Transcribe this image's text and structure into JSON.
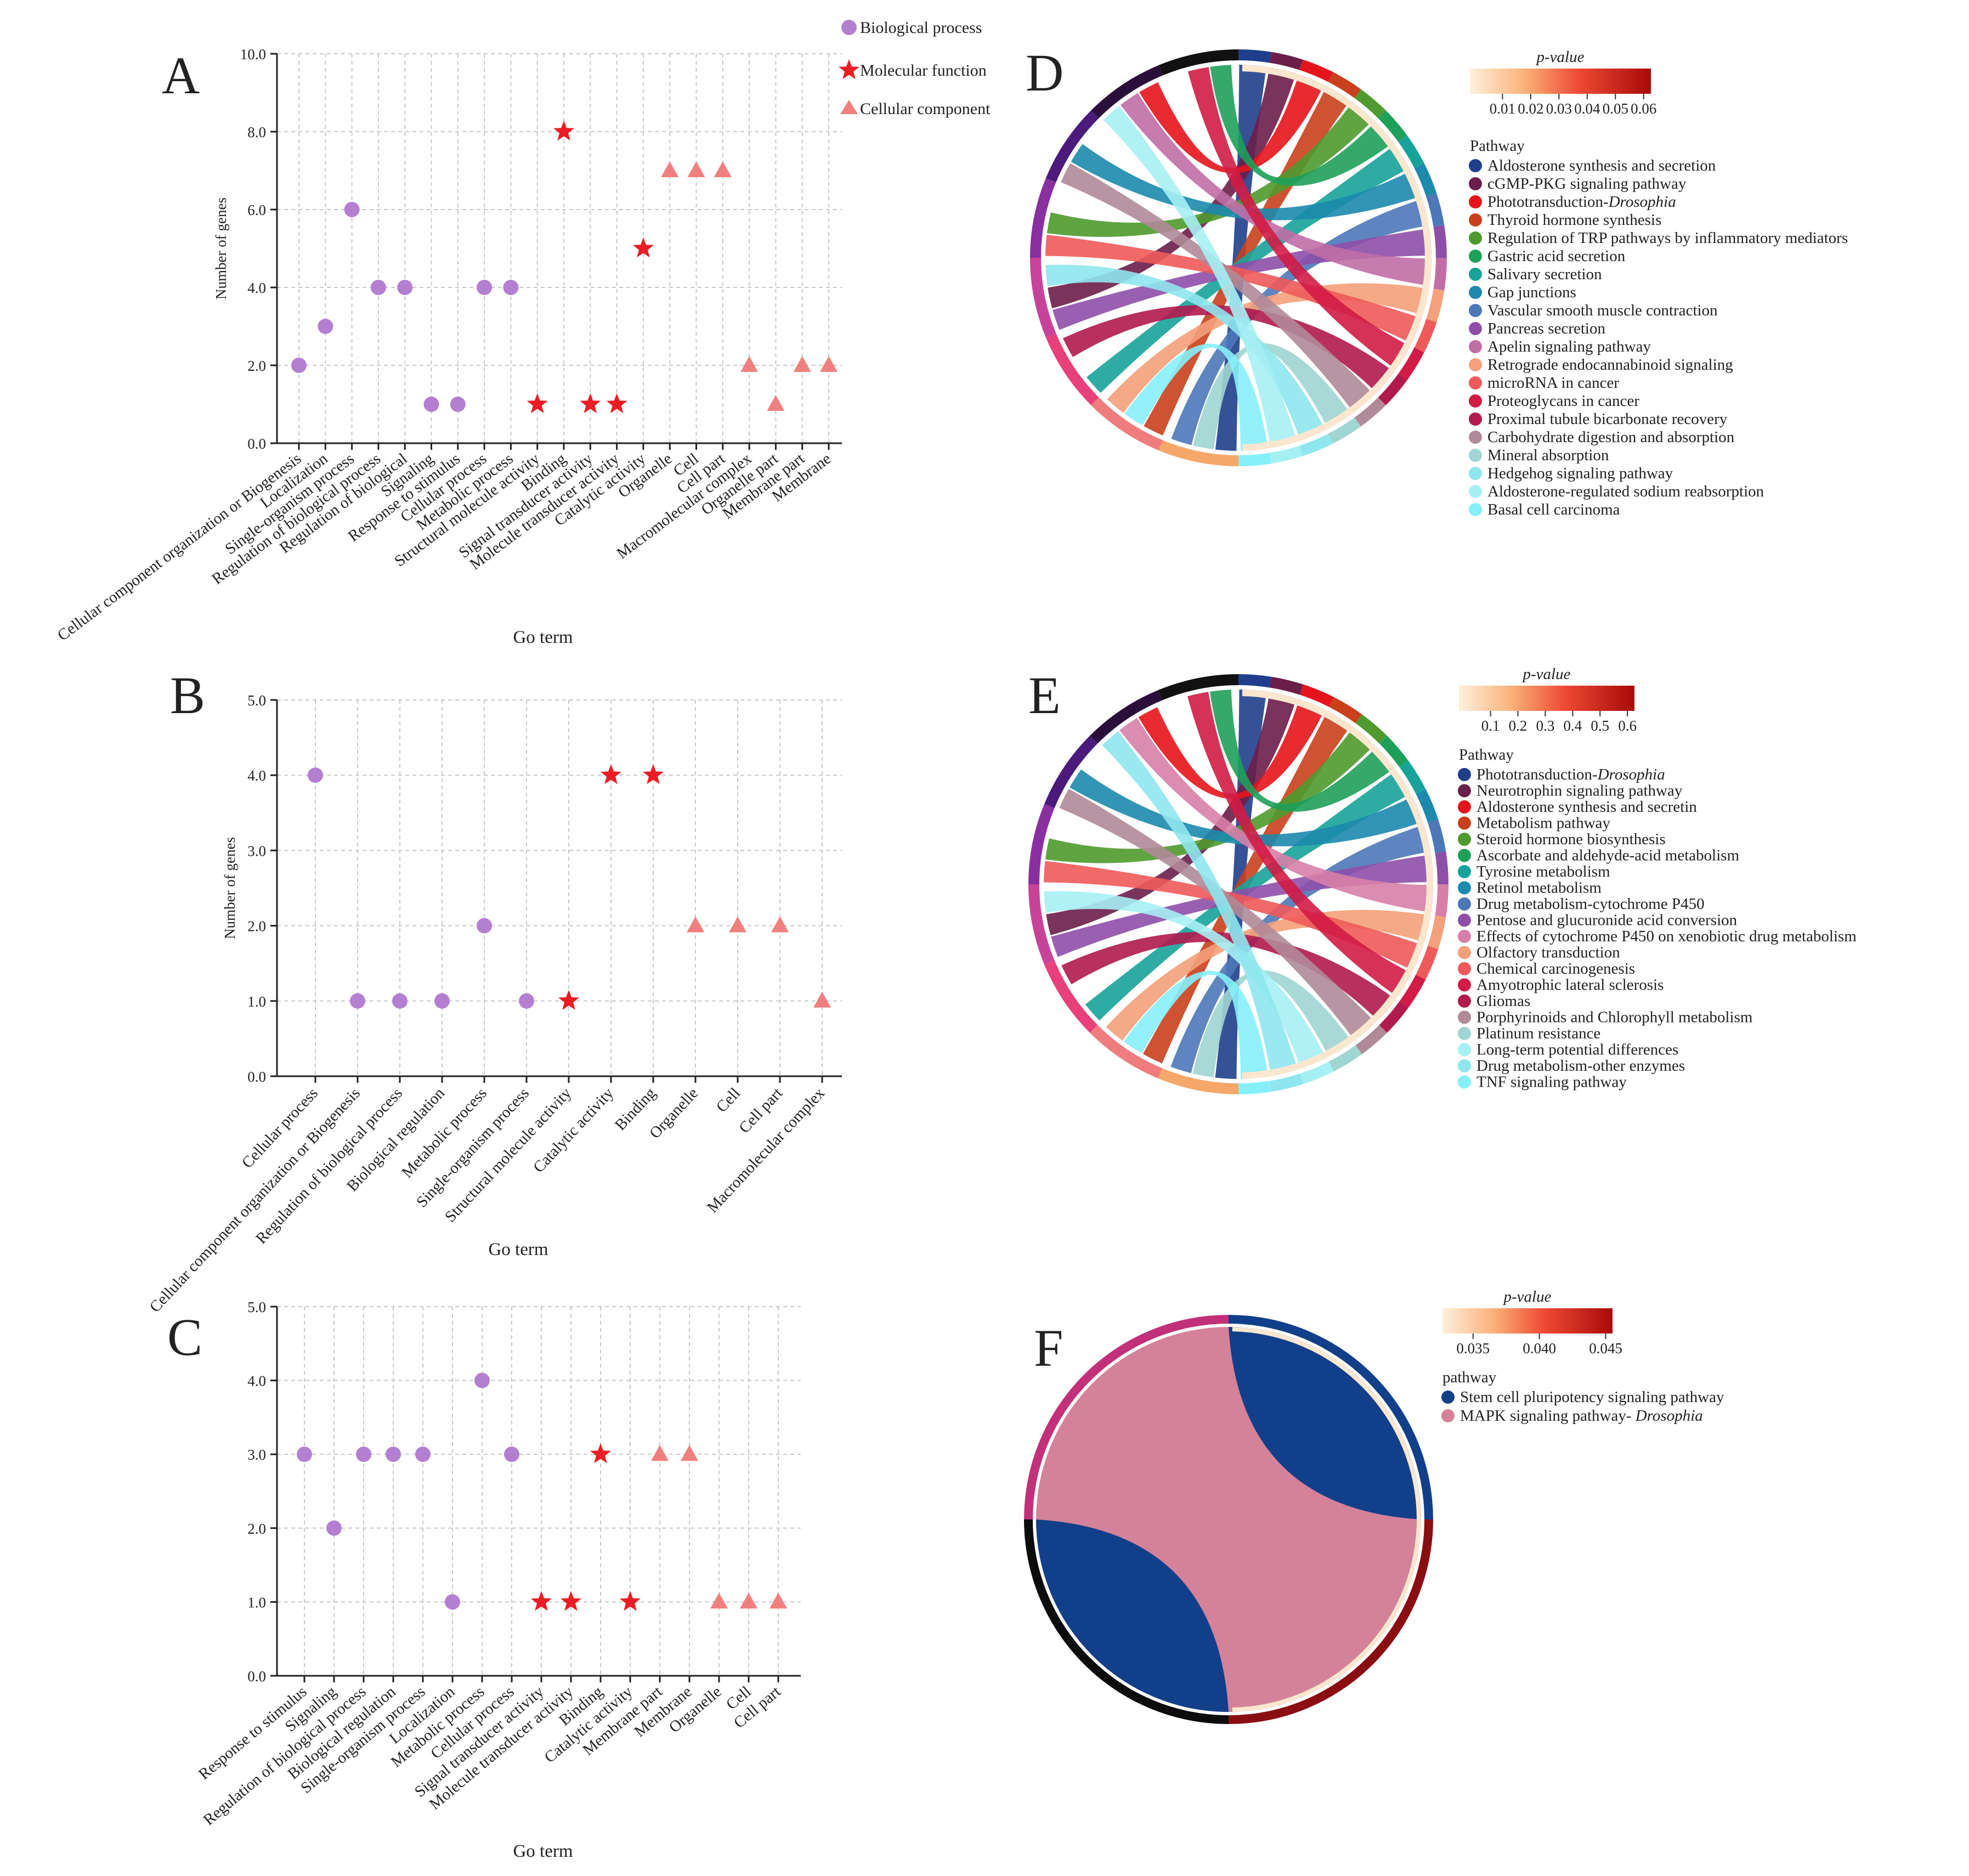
{
  "legend_main": {
    "entries": [
      {
        "label": "Biological process",
        "marker": "circle",
        "color": "#b47fd1"
      },
      {
        "label": "Molecular function",
        "marker": "star",
        "color": "#ec1c24"
      },
      {
        "label": "Cellular component",
        "marker": "triangle",
        "color": "#f08080"
      }
    ]
  },
  "chart_data": [
    {
      "panel": "A",
      "type": "scatter",
      "xlabel": "Go term",
      "ylabel": "Number of genes",
      "ylim": [
        0,
        10
      ],
      "yticks": [
        "0.0",
        "2.0",
        "4.0",
        "6.0",
        "8.0",
        "10.0"
      ],
      "ytick_values": [
        0,
        2,
        4,
        6,
        8,
        10
      ],
      "categories": [
        "Cellular component organization or Biogenesis",
        "Localization",
        "Single-organism process",
        "Regulation of biological process",
        "Regulation of biological",
        "Signaling",
        "Response to stimulus",
        "Cellular process",
        "Metabolic process",
        "Structural molecule activity",
        "Binding",
        "Signal transducer activity",
        "Molecule transducer activity",
        "Catalytic activity",
        "Organelle",
        "Cell",
        "Cell part",
        "Macromolecular complex",
        "Organelle part",
        "Membrane part",
        "Membrane"
      ],
      "values": [
        2,
        3,
        6,
        4,
        4,
        1,
        1,
        4,
        4,
        1,
        8,
        1,
        1,
        5,
        7,
        7,
        7,
        2,
        1,
        2,
        2
      ],
      "markers": [
        "circle",
        "circle",
        "circle",
        "circle",
        "circle",
        "circle",
        "circle",
        "circle",
        "circle",
        "star",
        "star",
        "star",
        "star",
        "star",
        "triangle",
        "triangle",
        "triangle",
        "triangle",
        "triangle",
        "triangle",
        "triangle"
      ]
    },
    {
      "panel": "B",
      "type": "scatter",
      "xlabel": "Go term",
      "ylabel": "Number of genes",
      "ylim": [
        0,
        5
      ],
      "yticks": [
        "0.0",
        "1.0",
        "2.0",
        "3.0",
        "4.0",
        "5.0"
      ],
      "ytick_values": [
        0,
        1,
        2,
        3,
        4,
        5
      ],
      "categories": [
        "Cellular process",
        "Cellular component organization or Biogenesis",
        "Regulation of biological process",
        "Biological regulation",
        "Metabolic process",
        "Single-organism process",
        "Structural molecule activity",
        "Catalytic activity",
        "Binding",
        "Organelle",
        "Cell",
        "Cell part",
        "Macromolecular complex"
      ],
      "values": [
        4,
        1,
        1,
        1,
        2,
        1,
        1,
        4,
        4,
        2,
        2,
        2,
        1
      ],
      "markers": [
        "circle",
        "circle",
        "circle",
        "circle",
        "circle",
        "circle",
        "star",
        "star",
        "star",
        "triangle",
        "triangle",
        "triangle",
        "triangle"
      ]
    },
    {
      "panel": "C",
      "type": "scatter",
      "xlabel": "Go term",
      "ylabel": "",
      "ylim": [
        0,
        5
      ],
      "yticks": [
        "0.0",
        "1.0",
        "2.0",
        "3.0",
        "4.0",
        "5.0"
      ],
      "ytick_values": [
        0,
        1,
        2,
        3,
        4,
        5
      ],
      "categories": [
        "Response to stimulus",
        "Signaling",
        "Regulation of biological process",
        "Biological regulation",
        "Single-organism process",
        "Localization",
        "Metabolic process",
        "Cellular process",
        "Signal transducer activity",
        "Molecule transducer activity",
        "Binding",
        "Catalytic activity",
        "Membrane part",
        "Membrane",
        "Organelle",
        "Cell",
        "Cell part"
      ],
      "values": [
        3,
        2,
        3,
        3,
        3,
        1,
        4,
        3,
        1,
        1,
        3,
        1,
        3,
        3,
        1,
        1,
        1
      ],
      "markers": [
        "circle",
        "circle",
        "circle",
        "circle",
        "circle",
        "circle",
        "circle",
        "circle",
        "star",
        "star",
        "star",
        "star",
        "triangle",
        "triangle",
        "triangle",
        "triangle",
        "triangle"
      ]
    },
    {
      "panel": "D",
      "type": "chord",
      "colorbar_title": "p-value",
      "colorbar_ticks": [
        "0.01",
        "0.02",
        "0.03",
        "0.04",
        "0.05",
        "0.06"
      ],
      "legend_title": "Pathway",
      "pathways": [
        {
          "name": "Aldosterone synthesis and secretion",
          "color": "#1f3f8c"
        },
        {
          "name": "cGMP-PKG signaling pathway",
          "color": "#6b1e4a"
        },
        {
          "name": "Phototransduction-Drosophia",
          "color": "#e5141b"
        },
        {
          "name": "Thyroid hormone synthesis",
          "color": "#c9401c"
        },
        {
          "name": "Regulation of TRP pathways by inflammatory mediators",
          "color": "#4f9a2e"
        },
        {
          "name": "Gastric acid secretion",
          "color": "#1ea05a"
        },
        {
          "name": "Salivary secretion",
          "color": "#17a39a"
        },
        {
          "name": "Gap junctions",
          "color": "#1c89ad"
        },
        {
          "name": "Vascular smooth muscle contraction",
          "color": "#4c78b8"
        },
        {
          "name": "Pancreas secretion",
          "color": "#8e4fa8"
        },
        {
          "name": "Apelin signaling pathway",
          "color": "#c06ea5"
        },
        {
          "name": "Retrograde endocannabinoid signaling",
          "color": "#f4a07a"
        },
        {
          "name": "microRNA in cancer",
          "color": "#ee5a5a"
        },
        {
          "name": "Proteoglycans in cancer",
          "color": "#d21b45"
        },
        {
          "name": "Proximal tubule bicarbonate recovery",
          "color": "#b01a4c"
        },
        {
          "name": "Carbohydrate digestion and absorption",
          "color": "#b08a98"
        },
        {
          "name": "Mineral absorption",
          "color": "#9fd5d2"
        },
        {
          "name": "Hedgehog signaling pathway",
          "color": "#8fe6ee"
        },
        {
          "name": "Aldosterone-regulated sodium reabsorption",
          "color": "#a6f0f4"
        },
        {
          "name": "Basal cell carcinoma",
          "color": "#86f0fa"
        }
      ]
    },
    {
      "panel": "E",
      "type": "chord",
      "colorbar_title": "p-value",
      "colorbar_ticks": [
        "0.1",
        "0.2",
        "0.3",
        "0.4",
        "0.5",
        "0.6"
      ],
      "legend_title": "Pathway",
      "pathways": [
        {
          "name": "Phototransduction-Drosophia",
          "color": "#1f3f8c"
        },
        {
          "name": "Neurotrophin signaling pathway",
          "color": "#6b1e4a"
        },
        {
          "name": "Aldosterone synthesis and secretin",
          "color": "#e5141b"
        },
        {
          "name": "Metabolism pathway",
          "color": "#c9401c"
        },
        {
          "name": "Steroid hormone biosynthesis",
          "color": "#4f9a2e"
        },
        {
          "name": "Ascorbate and aldehyde-acid metabolism",
          "color": "#1ea05a"
        },
        {
          "name": "Tyrosine metabolism",
          "color": "#17a39a"
        },
        {
          "name": "Retinol metabolism",
          "color": "#1c89ad"
        },
        {
          "name": "Drug metabolism-cytochrome P450",
          "color": "#4c78b8"
        },
        {
          "name": "Pentose and glucuronide acid conversion",
          "color": "#8e4fa8"
        },
        {
          "name": "Effects of cytochrome P450 on  xenobiotic drug metabolism",
          "color": "#d77fa9"
        },
        {
          "name": "Olfactory transduction",
          "color": "#f4a07a"
        },
        {
          "name": "Chemical carcinogenesis",
          "color": "#ee5a5a"
        },
        {
          "name": "Amyotrophic lateral sclerosis",
          "color": "#d21b45"
        },
        {
          "name": "Gliomas",
          "color": "#b01a4c"
        },
        {
          "name": "Porphyrinoids and Chlorophyll metabolism",
          "color": "#b08a98"
        },
        {
          "name": "Platinum resistance",
          "color": "#9fd5d2"
        },
        {
          "name": "Long-term potential differences",
          "color": "#a6f0f4"
        },
        {
          "name": "Drug metabolism-other enzymes",
          "color": "#8fe6ee"
        },
        {
          "name": "TNF signaling pathway",
          "color": "#86f0fa"
        }
      ]
    },
    {
      "panel": "F",
      "type": "chord",
      "colorbar_title": "p-value",
      "colorbar_ticks": [
        "0.035",
        "0.040",
        "0.045"
      ],
      "legend_title": "pathway",
      "pathways": [
        {
          "name": "Stem cell pluripotency signaling pathway",
          "color": "#123f8a"
        },
        {
          "name": "MAPK signaling pathway- Drosophia",
          "color": "#d48299"
        }
      ]
    }
  ]
}
